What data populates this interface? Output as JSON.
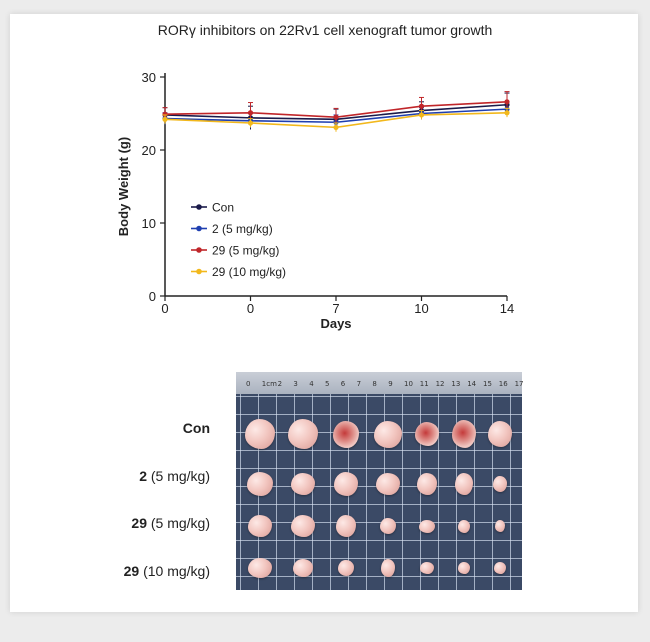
{
  "chart_data": {
    "type": "line",
    "title": "RORγ inhibitors on 22Rv1 cell xenograft tumor growth",
    "xlabel": "Days",
    "ylabel": "Body Weight (g)",
    "x": [
      "0",
      "0",
      "7",
      "10",
      "14"
    ],
    "ylim": [
      0,
      30
    ],
    "yticks": [
      "0",
      "10",
      "20",
      "30"
    ],
    "legend_position": "lower-left",
    "series": [
      {
        "name": "Con",
        "color": "#1a1a4a",
        "values": [
          24.8,
          24.4,
          24.2,
          25.4,
          26.2
        ],
        "errors": [
          1.0,
          1.6,
          1.4,
          1.2,
          1.6
        ]
      },
      {
        "name": "2 (5 mg/kg)",
        "color": "#1f3fb0",
        "values": [
          24.3,
          24.0,
          23.8,
          25.0,
          25.6
        ],
        "errors": [
          0.8,
          1.0,
          1.0,
          0.8,
          1.0
        ]
      },
      {
        "name": "29 (5 mg/kg)",
        "color": "#c0262a",
        "values": [
          24.9,
          25.1,
          24.5,
          26.0,
          26.6
        ],
        "errors": [
          0.9,
          1.4,
          1.2,
          1.2,
          1.4
        ]
      },
      {
        "name": "29 (10 mg/kg)",
        "color": "#f2b81c",
        "values": [
          24.2,
          23.7,
          23.1,
          24.8,
          25.1
        ],
        "errors": [
          0.6,
          0.6,
          0.6,
          0.6,
          0.6
        ]
      }
    ]
  },
  "photo": {
    "ruler_numbers": [
      "0",
      "1cm",
      "2",
      "3",
      "4",
      "5",
      "6",
      "7",
      "8",
      "9",
      "10",
      "11",
      "12",
      "13",
      "14",
      "15",
      "16",
      "17"
    ],
    "rows": [
      {
        "compound": "Con",
        "dose": "",
        "count": 7
      },
      {
        "compound": "2",
        "dose": " (5 mg/kg)",
        "count": 7
      },
      {
        "compound": "29",
        "dose": " (5 mg/kg)",
        "count": 7
      },
      {
        "compound": "29",
        "dose": " (10 mg/kg)",
        "count": 7
      }
    ]
  }
}
